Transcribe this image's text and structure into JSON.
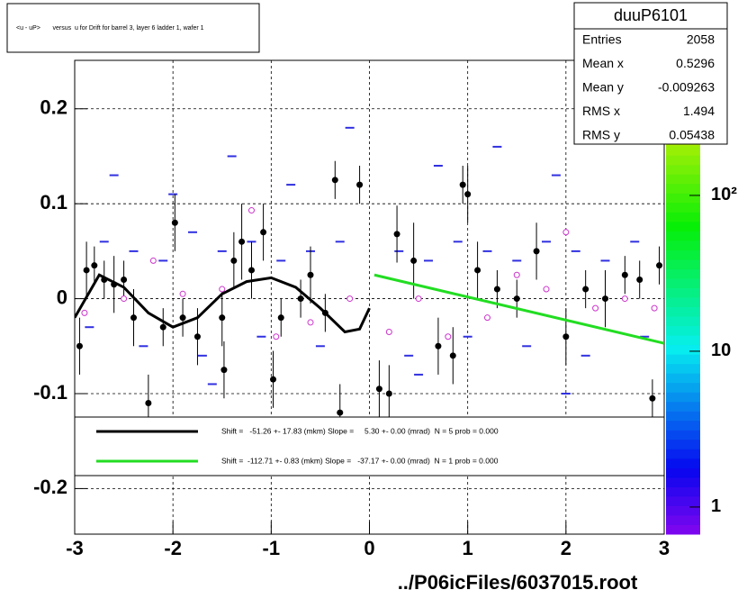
{
  "chart_data": {
    "type": "scatter",
    "title": "<u - uP>       versus  u for Drift for barrel 3, layer 6 ladder 1, wafer 1",
    "footer": "../P06icFiles/6037015.root",
    "xlim": [
      -3,
      3
    ],
    "xticks": [
      -3,
      -2,
      -1,
      0,
      1,
      2,
      3
    ],
    "ylim": [
      -0.248,
      0.251
    ],
    "yticks": [
      -0.2,
      -0.1,
      0,
      0.1,
      0.2
    ],
    "zlim": [
      0.67,
      736
    ],
    "zticks": [
      1,
      10,
      {
        "value": 100,
        "label": "10²"
      }
    ],
    "zlog": true,
    "grid": true,
    "stats": {
      "name": "duuP6101",
      "rows": [
        {
          "label": "Entries",
          "value": 2058
        },
        {
          "label": "Mean x",
          "value": 0.5296
        },
        {
          "label": "Mean y",
          "value": -0.009263
        },
        {
          "label": "RMS x",
          "value": 1.494
        },
        {
          "label": "RMS y",
          "value": 0.05438
        }
      ]
    },
    "cells": {
      "color": "#3030e0",
      "x": [
        -2.7,
        -2.4,
        -2.1,
        -1.8,
        -1.5,
        -1.2,
        -0.9,
        -0.6,
        -0.3,
        0.3,
        0.6,
        0.9,
        1.2,
        1.5,
        1.8,
        2.1,
        2.4,
        2.7,
        -2.85,
        -2.3,
        -1.7,
        -1.1,
        -0.5,
        0.4,
        1.0,
        1.6,
        2.2,
        2.8,
        -2.6,
        -2.0,
        -1.4,
        -0.8,
        -0.2,
        0.7,
        1.3,
        1.9,
        2.5,
        -1.6,
        0.5,
        2.0
      ],
      "values": [
        0.06,
        0.05,
        0.04,
        0.07,
        0.05,
        0.06,
        0.04,
        0.05,
        0.06,
        0.05,
        0.04,
        0.06,
        0.05,
        0.04,
        0.06,
        0.05,
        0.04,
        0.06,
        -0.03,
        -0.05,
        -0.06,
        -0.04,
        -0.05,
        -0.06,
        -0.04,
        -0.05,
        -0.06,
        -0.04,
        0.13,
        0.11,
        0.15,
        0.12,
        0.18,
        0.14,
        0.16,
        0.13,
        0.19,
        -0.09,
        -0.08,
        -0.1
      ]
    },
    "series": [
      {
        "kind": "points",
        "color": "#000000",
        "x": [
          -2.95,
          -2.88,
          -2.8,
          -2.7,
          -2.6,
          -2.5,
          -2.4,
          -2.25,
          -2.1,
          -1.98,
          -1.9,
          -1.75,
          -1.5,
          -1.48,
          -1.38,
          -1.3,
          -1.2,
          -1.08,
          -0.98,
          -0.9,
          -0.7,
          -0.6,
          -0.45,
          -0.35,
          -0.1,
          -0.3,
          0.1,
          0.2,
          0.28,
          0.45,
          0.7,
          0.85,
          0.95,
          1.0,
          1.1,
          1.3,
          1.5,
          1.7,
          2.0,
          2.2,
          2.4,
          2.6,
          2.75,
          2.88,
          2.95
        ],
        "values": [
          -0.05,
          0.03,
          0.035,
          0.02,
          0.015,
          0.02,
          -0.02,
          -0.11,
          -0.03,
          0.08,
          -0.02,
          -0.04,
          -0.02,
          -0.075,
          0.04,
          0.06,
          0.03,
          0.07,
          -0.085,
          -0.02,
          0.0,
          0.025,
          -0.015,
          0.125,
          0.12,
          -0.12,
          -0.095,
          -0.1,
          0.068,
          0.04,
          -0.05,
          -0.06,
          0.12,
          0.11,
          0.03,
          0.01,
          0.0,
          0.05,
          -0.04,
          0.01,
          0.0,
          0.025,
          0.02,
          -0.105,
          0.035
        ],
        "errors": [
          0.03,
          0.03,
          0.02,
          0.02,
          0.03,
          0.02,
          0.03,
          0.03,
          0.02,
          0.03,
          0.02,
          0.03,
          0.03,
          0.03,
          0.03,
          0.04,
          0.03,
          0.03,
          0.03,
          0.02,
          0.02,
          0.03,
          0.02,
          0.02,
          0.02,
          0.03,
          0.03,
          0.03,
          0.03,
          0.04,
          0.03,
          0.03,
          0.02,
          0.03,
          0.03,
          0.02,
          0.02,
          0.03,
          0.03,
          0.02,
          0.03,
          0.02,
          0.02,
          0.02,
          0.02
        ]
      },
      {
        "kind": "open",
        "color": "#cc33cc",
        "x": [
          -2.9,
          -2.5,
          -2.2,
          -1.9,
          -1.5,
          -1.2,
          -0.95,
          -0.6,
          -0.2,
          0.2,
          0.5,
          0.8,
          1.2,
          1.5,
          1.8,
          2.0,
          2.3,
          2.6,
          2.9
        ],
        "values": [
          -0.015,
          0.0,
          0.04,
          0.005,
          0.01,
          0.093,
          -0.04,
          -0.025,
          0.0,
          -0.035,
          0.0,
          -0.04,
          -0.02,
          0.025,
          0.01,
          0.07,
          -0.01,
          0.0,
          -0.01
        ]
      },
      {
        "kind": "fit",
        "color": "#000000",
        "name": "Shift =   -51.26 +- 17.83 (mkm) Slope =     5.30 +- 0.00 (mrad)  N = 5 prob = 0.000",
        "x": [
          -3,
          -2.75,
          -2.5,
          -2.25,
          -2,
          -1.75,
          -1.5,
          -1.25,
          -1,
          -0.75,
          -0.5,
          -0.25,
          -0.1,
          0
        ],
        "values": [
          -0.02,
          0.025,
          0.012,
          -0.015,
          -0.03,
          -0.02,
          0.005,
          0.018,
          0.022,
          0.012,
          -0.01,
          -0.035,
          -0.032,
          -0.01
        ]
      },
      {
        "kind": "fit",
        "color": "#22dd22",
        "name": "Shift =  -112.71 +- 0.83 (mkm) Slope =   -37.17 +- 0.00 (mrad)  N = 1 prob = 0.000",
        "x": [
          0.05,
          3
        ],
        "values": [
          0.025,
          -0.047
        ]
      }
    ]
  }
}
